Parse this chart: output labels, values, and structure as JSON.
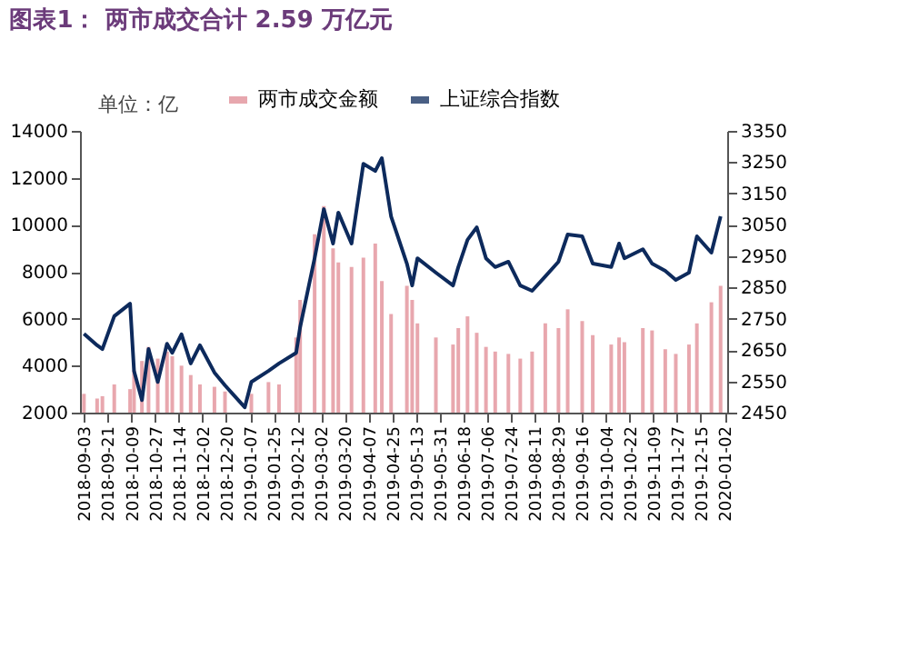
{
  "chart_data": {
    "type": "bar",
    "title": "图表1：  两市成交合计 2.59 万亿元",
    "annotations": [
      "单位：亿"
    ],
    "x": [
      "2018-09-03",
      "2018-09-13",
      "2018-09-17",
      "2018-09-26",
      "2018-10-08",
      "2018-10-11",
      "2018-10-17",
      "2018-10-22",
      "2018-10-29",
      "2018-11-05",
      "2018-11-09",
      "2018-11-16",
      "2018-11-23",
      "2018-11-30",
      "2018-12-11",
      "2018-12-19",
      "2019-01-03",
      "2019-01-08",
      "2019-01-21",
      "2019-01-29",
      "2019-02-11",
      "2019-02-14",
      "2019-02-25",
      "2019-03-04",
      "2019-03-11",
      "2019-03-15",
      "2019-03-25",
      "2019-04-03",
      "2019-04-12",
      "2019-04-17",
      "2019-04-24",
      "2019-05-06",
      "2019-05-10",
      "2019-05-14",
      "2019-05-28",
      "2019-06-10",
      "2019-06-14",
      "2019-06-21",
      "2019-06-28",
      "2019-07-05",
      "2019-07-12",
      "2019-07-22",
      "2019-07-31",
      "2019-08-09",
      "2019-08-19",
      "2019-08-29",
      "2019-09-05",
      "2019-09-16",
      "2019-09-24",
      "2019-10-08",
      "2019-10-14",
      "2019-10-18",
      "2019-11-01",
      "2019-11-08",
      "2019-11-18",
      "2019-11-26",
      "2019-12-06",
      "2019-12-12",
      "2019-12-23",
      "2019-12-30"
    ],
    "series": [
      {
        "name": "两市成交金额",
        "color": "#e08a93",
        "values": [
          2800,
          2600,
          2700,
          3200,
          3000,
          3800,
          4200,
          4800,
          4300,
          4600,
          4400,
          4000,
          3600,
          3200,
          3100,
          2900,
          null,
          2800,
          3300,
          3200,
          5200,
          6800,
          9600,
          10800,
          9000,
          8400,
          8200,
          8600,
          9200,
          7600,
          6200,
          7400,
          6800,
          5800,
          5200,
          4900,
          5600,
          6100,
          5400,
          4800,
          4600,
          4500,
          4300,
          4600,
          5800,
          5600,
          6400,
          5900,
          5300,
          4900,
          5200,
          5000,
          5600,
          5500,
          4700,
          4500,
          4900,
          5800,
          6700,
          7400
        ]
      },
      {
        "name": "上证综合指数",
        "type": "line",
        "axis": "y2",
        "color": "#0d2a5c",
        "values": [
          2702,
          2665,
          2653,
          2758,
          2798,
          2583,
          2490,
          2653,
          2548,
          2670,
          2641,
          2700,
          2607,
          2665,
          2578,
          2537,
          2467,
          2548,
          2583,
          2607,
          2641,
          2723,
          2943,
          3100,
          2990,
          3089,
          2990,
          3245,
          3222,
          3263,
          3077,
          2926,
          2856,
          2943,
          2897,
          2856,
          2915,
          3002,
          3042,
          2943,
          2915,
          2932,
          2856,
          2839,
          2885,
          2932,
          3019,
          3013,
          2926,
          2915,
          2990,
          2943,
          2972,
          2926,
          2903,
          2874,
          2897,
          3013,
          2961,
          3077
        ]
      }
    ],
    "xlim": [
      "2018-08-31",
      "2020-01-04"
    ],
    "xticks": [
      "2018-09-03",
      "2018-09-21",
      "2018-10-09",
      "2018-10-27",
      "2018-11-14",
      "2018-12-02",
      "2018-12-20",
      "2019-01-07",
      "2019-01-25",
      "2019-02-12",
      "2019-03-02",
      "2019-03-20",
      "2019-04-07",
      "2019-04-25",
      "2019-05-13",
      "2019-05-31",
      "2019-06-18",
      "2019-07-06",
      "2019-07-24",
      "2019-08-11",
      "2019-08-29",
      "2019-09-16",
      "2019-10-04",
      "2019-10-22",
      "2019-11-09",
      "2019-11-27",
      "2019-12-15",
      "2020-01-02"
    ],
    "ylim": [
      2000,
      14000
    ],
    "yticks": [
      2000,
      4000,
      6000,
      8000,
      10000,
      12000,
      14000
    ],
    "y2lim": [
      2450,
      3350
    ],
    "y2ticks": [
      2450,
      2550,
      2650,
      2750,
      2850,
      2950,
      3050,
      3150,
      3250,
      3350
    ],
    "legend": "top",
    "grid": false
  }
}
